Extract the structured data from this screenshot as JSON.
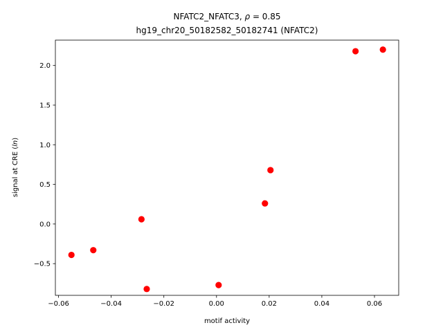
{
  "chart_data": {
    "type": "scatter",
    "title_line1": "NFATC2_NFATC3, ρ = 0.85",
    "title_line2": "hg19_chr20_50182582_50182741 (NFATC2)",
    "xlabel": "motif activity",
    "ylabel": "signal at CRE (ln)",
    "xlim": [
      -0.0612,
      0.0692
    ],
    "ylim": [
      -0.9,
      2.32
    ],
    "x_ticks": [
      -0.06,
      -0.04,
      -0.02,
      0.0,
      0.02,
      0.04,
      0.06
    ],
    "x_tick_labels": [
      "−0.06",
      "−0.04",
      "−0.02",
      "0.00",
      "0.02",
      "0.04",
      "0.06"
    ],
    "y_ticks": [
      -0.5,
      0.0,
      0.5,
      1.0,
      1.5,
      2.0
    ],
    "y_tick_labels": [
      "−0.5",
      "0.0",
      "0.5",
      "1.0",
      "1.5",
      "2.0"
    ],
    "marker_color": "#ff0000",
    "points": [
      {
        "x": -0.0551,
        "y": -0.39
      },
      {
        "x": -0.0468,
        "y": -0.33
      },
      {
        "x": -0.0285,
        "y": 0.06
      },
      {
        "x": -0.0265,
        "y": -0.82
      },
      {
        "x": 0.0008,
        "y": -0.77
      },
      {
        "x": 0.0184,
        "y": 0.26
      },
      {
        "x": 0.0205,
        "y": 0.68
      },
      {
        "x": 0.0528,
        "y": 2.18
      },
      {
        "x": 0.0632,
        "y": 2.2
      }
    ]
  }
}
